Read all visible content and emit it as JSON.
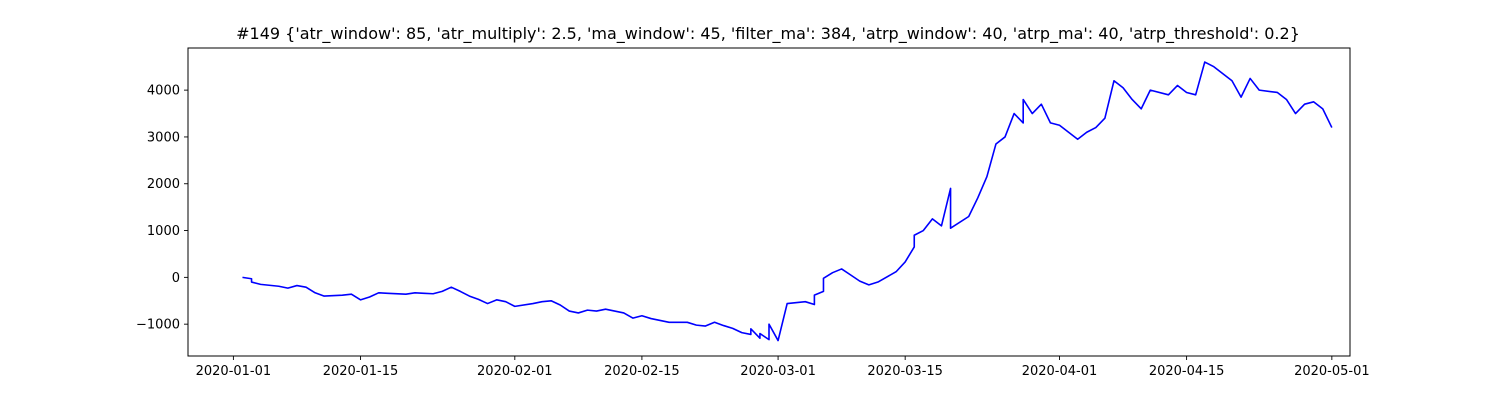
{
  "chart_data": {
    "type": "line",
    "title": "#149 {'atr_window': 85, 'atr_multiply': 2.5, 'ma_window': 45, 'filter_ma': 384, 'atrp_window': 40, 'atrp_ma': 40, 'atrp_threshold': 0.2}",
    "xlabel": "",
    "ylabel": "",
    "x_is_date": true,
    "xlim": [
      "2019-12-27",
      "2020-05-03"
    ],
    "ylim": [
      -1680,
      4900
    ],
    "xticks": [
      "2020-01-01",
      "2020-01-15",
      "2020-02-01",
      "2020-02-15",
      "2020-03-01",
      "2020-03-15",
      "2020-04-01",
      "2020-04-15",
      "2020-05-01"
    ],
    "yticks": [
      -1000,
      0,
      1000,
      2000,
      3000,
      4000
    ],
    "ytick_labels": [
      "−1000",
      "0",
      "1000",
      "2000",
      "3000",
      "4000"
    ],
    "grid": false,
    "legend": "none",
    "series": [
      {
        "color": "#0000ff",
        "points": [
          [
            "2020-01-02",
            0
          ],
          [
            "2020-01-03",
            -30
          ],
          [
            "2020-01-03",
            -100
          ],
          [
            "2020-01-04",
            -150
          ],
          [
            "2020-01-06",
            -190
          ],
          [
            "2020-01-07",
            -230
          ],
          [
            "2020-01-08",
            -175
          ],
          [
            "2020-01-09",
            -210
          ],
          [
            "2020-01-10",
            -330
          ],
          [
            "2020-01-11",
            -400
          ],
          [
            "2020-01-13",
            -380
          ],
          [
            "2020-01-14",
            -360
          ],
          [
            "2020-01-15",
            -480
          ],
          [
            "2020-01-16",
            -420
          ],
          [
            "2020-01-17",
            -330
          ],
          [
            "2020-01-18",
            -340
          ],
          [
            "2020-01-20",
            -360
          ],
          [
            "2020-01-21",
            -330
          ],
          [
            "2020-01-22",
            -340
          ],
          [
            "2020-01-23",
            -350
          ],
          [
            "2020-01-24",
            -300
          ],
          [
            "2020-01-25",
            -210
          ],
          [
            "2020-01-26",
            -300
          ],
          [
            "2020-01-27",
            -400
          ],
          [
            "2020-01-28",
            -470
          ],
          [
            "2020-01-29",
            -560
          ],
          [
            "2020-01-30",
            -480
          ],
          [
            "2020-01-31",
            -520
          ],
          [
            "2020-02-01",
            -620
          ],
          [
            "2020-02-03",
            -560
          ],
          [
            "2020-02-04",
            -520
          ],
          [
            "2020-02-05",
            -500
          ],
          [
            "2020-02-06",
            -590
          ],
          [
            "2020-02-07",
            -720
          ],
          [
            "2020-02-08",
            -760
          ],
          [
            "2020-02-09",
            -700
          ],
          [
            "2020-02-10",
            -720
          ],
          [
            "2020-02-11",
            -680
          ],
          [
            "2020-02-12",
            -720
          ],
          [
            "2020-02-13",
            -760
          ],
          [
            "2020-02-14",
            -870
          ],
          [
            "2020-02-15",
            -820
          ],
          [
            "2020-02-16",
            -880
          ],
          [
            "2020-02-18",
            -960
          ],
          [
            "2020-02-20",
            -960
          ],
          [
            "2020-02-21",
            -1020
          ],
          [
            "2020-02-22",
            -1040
          ],
          [
            "2020-02-23",
            -960
          ],
          [
            "2020-02-24",
            -1030
          ],
          [
            "2020-02-25",
            -1090
          ],
          [
            "2020-02-26",
            -1180
          ],
          [
            "2020-02-27",
            -1220
          ],
          [
            "2020-02-27",
            -1100
          ],
          [
            "2020-02-28",
            -1300
          ],
          [
            "2020-02-28",
            -1200
          ],
          [
            "2020-02-29",
            -1330
          ],
          [
            "2020-02-29",
            -1000
          ],
          [
            "2020-03-01",
            -1350
          ],
          [
            "2020-03-02",
            -560
          ],
          [
            "2020-03-04",
            -520
          ],
          [
            "2020-03-05",
            -580
          ],
          [
            "2020-03-05",
            -380
          ],
          [
            "2020-03-06",
            -300
          ],
          [
            "2020-03-06",
            -20
          ],
          [
            "2020-03-07",
            100
          ],
          [
            "2020-03-08",
            180
          ],
          [
            "2020-03-09",
            50
          ],
          [
            "2020-03-10",
            -80
          ],
          [
            "2020-03-11",
            -160
          ],
          [
            "2020-03-12",
            -100
          ],
          [
            "2020-03-14",
            120
          ],
          [
            "2020-03-15",
            330
          ],
          [
            "2020-03-16",
            650
          ],
          [
            "2020-03-16",
            900
          ],
          [
            "2020-03-17",
            1000
          ],
          [
            "2020-03-18",
            1250
          ],
          [
            "2020-03-19",
            1100
          ],
          [
            "2020-03-20",
            1900
          ],
          [
            "2020-03-20",
            1050
          ],
          [
            "2020-03-22",
            1300
          ],
          [
            "2020-03-23",
            1700
          ],
          [
            "2020-03-24",
            2150
          ],
          [
            "2020-03-25",
            2850
          ],
          [
            "2020-03-26",
            3000
          ],
          [
            "2020-03-27",
            3500
          ],
          [
            "2020-03-28",
            3300
          ],
          [
            "2020-03-28",
            3800
          ],
          [
            "2020-03-29",
            3500
          ],
          [
            "2020-03-30",
            3700
          ],
          [
            "2020-03-31",
            3300
          ],
          [
            "2020-04-01",
            3250
          ],
          [
            "2020-04-02",
            3100
          ],
          [
            "2020-04-03",
            2950
          ],
          [
            "2020-04-04",
            3100
          ],
          [
            "2020-04-05",
            3200
          ],
          [
            "2020-04-06",
            3400
          ],
          [
            "2020-04-07",
            4200
          ],
          [
            "2020-04-08",
            4050
          ],
          [
            "2020-04-09",
            3800
          ],
          [
            "2020-04-10",
            3600
          ],
          [
            "2020-04-11",
            4000
          ],
          [
            "2020-04-13",
            3900
          ],
          [
            "2020-04-14",
            4100
          ],
          [
            "2020-04-15",
            3950
          ],
          [
            "2020-04-16",
            3900
          ],
          [
            "2020-04-17",
            4600
          ],
          [
            "2020-04-18",
            4500
          ],
          [
            "2020-04-20",
            4200
          ],
          [
            "2020-04-21",
            3850
          ],
          [
            "2020-04-22",
            4250
          ],
          [
            "2020-04-23",
            4000
          ],
          [
            "2020-04-25",
            3950
          ],
          [
            "2020-04-26",
            3800
          ],
          [
            "2020-04-27",
            3500
          ],
          [
            "2020-04-28",
            3700
          ],
          [
            "2020-04-29",
            3750
          ],
          [
            "2020-04-30",
            3600
          ],
          [
            "2020-05-01",
            3200
          ]
        ]
      }
    ]
  }
}
